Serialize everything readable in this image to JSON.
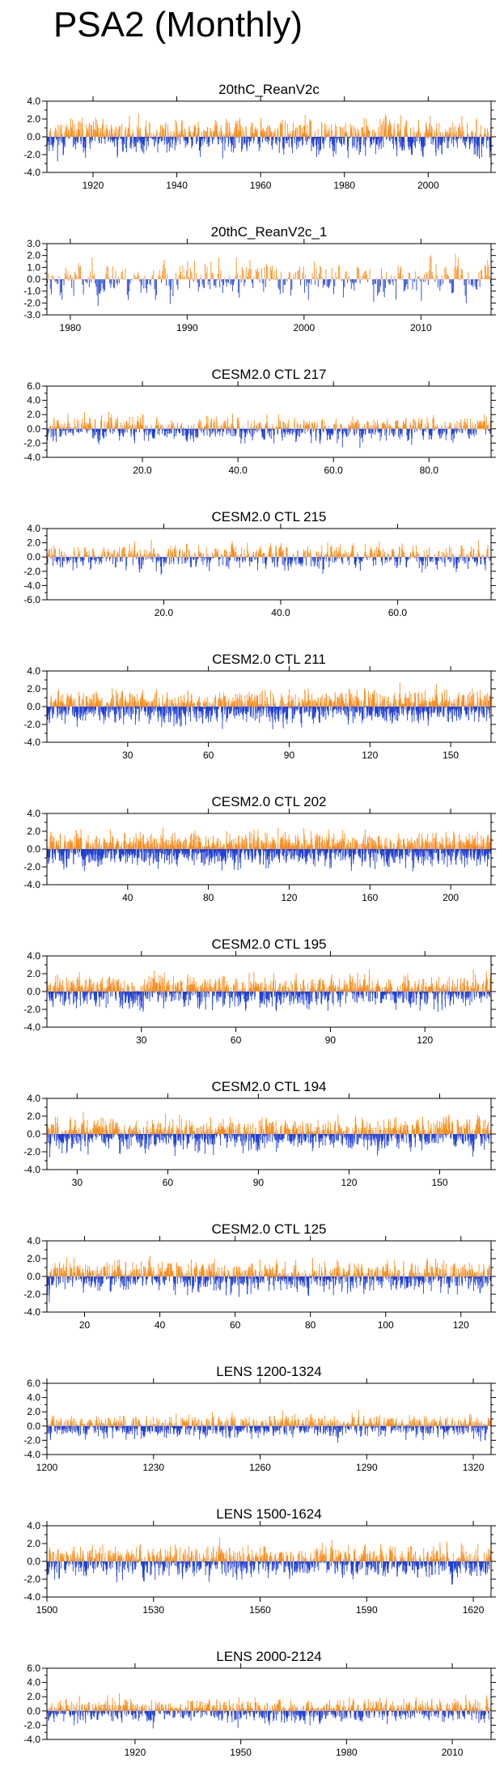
{
  "title": "PSA2 (Monthly)",
  "colors": {
    "positive": "#ff8c1a",
    "negative": "#1f3fd6",
    "frame": "#000000"
  },
  "chart_data": [
    {
      "type": "bar",
      "title": "20thC_ReanV2c",
      "xlim": [
        1909,
        2015
      ],
      "ylim": [
        -4,
        4
      ],
      "yticks": [
        -4,
        -2,
        0,
        2,
        4
      ],
      "ytick_labels": [
        "-4.0",
        "-2.0",
        "0.0",
        "2.0",
        "4.0"
      ],
      "xticks": [
        1920,
        1940,
        1960,
        1980,
        2000
      ],
      "xtick_labels": [
        "1920",
        "1940",
        "1960",
        "1980",
        "2000"
      ],
      "n_points": 1272,
      "amplitude": 1.1,
      "seed": 11
    },
    {
      "type": "bar",
      "title": "20thC_ReanV2c_1",
      "xlim": [
        1978,
        2016
      ],
      "ylim": [
        -3,
        3
      ],
      "yticks": [
        -3,
        -2,
        -1,
        0,
        1,
        2,
        3
      ],
      "ytick_labels": [
        "-3.0",
        "-2.0",
        "-1.0",
        "0.0",
        "1.0",
        "2.0",
        "3.0"
      ],
      "xticks": [
        1980,
        1990,
        2000,
        2010
      ],
      "xtick_labels": [
        "1980",
        "1990",
        "2000",
        "2010"
      ],
      "n_points": 456,
      "amplitude": 0.9,
      "seed": 23
    },
    {
      "type": "bar",
      "title": "CESM2.0 CTL 217",
      "xlim": [
        0,
        93
      ],
      "ylim": [
        -4,
        6
      ],
      "yticks": [
        -4,
        -2,
        0,
        2,
        4,
        6
      ],
      "ytick_labels": [
        "-4.0",
        "-2.0",
        "0.0",
        "2.0",
        "4.0",
        "6.0"
      ],
      "xticks": [
        20,
        40,
        60,
        80
      ],
      "xtick_labels": [
        "20.0",
        "40.0",
        "60.0",
        "80.0"
      ],
      "n_points": 1116,
      "amplitude": 1.0,
      "seed": 37
    },
    {
      "type": "bar",
      "title": "CESM2.0 CTL 215",
      "xlim": [
        0,
        76
      ],
      "ylim": [
        -6,
        4
      ],
      "yticks": [
        -6,
        -4,
        -2,
        0,
        2,
        4
      ],
      "ytick_labels": [
        "-6.0",
        "-4.0",
        "-2.0",
        "0.0",
        "2.0",
        "4.0"
      ],
      "xticks": [
        20,
        40,
        60
      ],
      "xtick_labels": [
        "20.0",
        "40.0",
        "60.0"
      ],
      "n_points": 912,
      "amplitude": 1.0,
      "seed": 41
    },
    {
      "type": "bar",
      "title": "CESM2.0 CTL 211",
      "xlim": [
        0,
        165
      ],
      "ylim": [
        -4,
        4
      ],
      "yticks": [
        -4,
        -2,
        0,
        2,
        4
      ],
      "ytick_labels": [
        "-4.0",
        "-2.0",
        "0.0",
        "2.0",
        "4.0"
      ],
      "xticks": [
        30,
        60,
        90,
        120,
        150
      ],
      "xtick_labels": [
        "30",
        "60",
        "90",
        "120",
        "150"
      ],
      "n_points": 1980,
      "amplitude": 1.0,
      "seed": 53
    },
    {
      "type": "bar",
      "title": "CESM2.0 CTL 202",
      "xlim": [
        0,
        220
      ],
      "ylim": [
        -4,
        4
      ],
      "yticks": [
        -4,
        -2,
        0,
        2,
        4
      ],
      "ytick_labels": [
        "-4.0",
        "-2.0",
        "0.0",
        "2.0",
        "4.0"
      ],
      "xticks": [
        40,
        80,
        120,
        160,
        200
      ],
      "xtick_labels": [
        "40",
        "80",
        "120",
        "160",
        "200"
      ],
      "n_points": 2640,
      "amplitude": 1.0,
      "seed": 67
    },
    {
      "type": "bar",
      "title": "CESM2.0 CTL 195",
      "xlim": [
        0,
        141
      ],
      "ylim": [
        -4,
        4
      ],
      "yticks": [
        -4,
        -2,
        0,
        2,
        4
      ],
      "ytick_labels": [
        "-4.0",
        "-2.0",
        "0.0",
        "2.0",
        "4.0"
      ],
      "xticks": [
        30,
        60,
        90,
        120
      ],
      "xtick_labels": [
        "30",
        "60",
        "90",
        "120"
      ],
      "n_points": 1692,
      "amplitude": 1.0,
      "seed": 71
    },
    {
      "type": "bar",
      "title": "CESM2.0 CTL 194",
      "xlim": [
        20,
        167
      ],
      "ylim": [
        -4,
        4
      ],
      "yticks": [
        -4,
        -2,
        0,
        2,
        4
      ],
      "ytick_labels": [
        "-4.0",
        "-2.0",
        "0.0",
        "2.0",
        "4.0"
      ],
      "xticks": [
        30,
        60,
        90,
        120,
        150
      ],
      "xtick_labels": [
        "30",
        "60",
        "90",
        "120",
        "150"
      ],
      "n_points": 1764,
      "amplitude": 1.0,
      "seed": 83
    },
    {
      "type": "bar",
      "title": "CESM2.0 CTL 125",
      "xlim": [
        10,
        128
      ],
      "ylim": [
        -4,
        4
      ],
      "yticks": [
        -4,
        -2,
        0,
        2,
        4
      ],
      "ytick_labels": [
        "-4.0",
        "-2.0",
        "0.0",
        "2.0",
        "4.0"
      ],
      "xticks": [
        20,
        40,
        60,
        80,
        100,
        120
      ],
      "xtick_labels": [
        "20",
        "40",
        "60",
        "80",
        "100",
        "120"
      ],
      "n_points": 1416,
      "amplitude": 1.0,
      "seed": 97
    },
    {
      "type": "bar",
      "title": "LENS 1200-1324",
      "xlim": [
        1200,
        1325
      ],
      "ylim": [
        -4,
        6
      ],
      "yticks": [
        -4,
        -2,
        0,
        2,
        4,
        6
      ],
      "ytick_labels": [
        "-4.0",
        "-2.0",
        "0.0",
        "2.0",
        "4.0",
        "6.0"
      ],
      "xticks": [
        1200,
        1230,
        1260,
        1290,
        1320
      ],
      "xtick_labels": [
        "1200",
        "1230",
        "1260",
        "1290",
        "1320"
      ],
      "n_points": 1500,
      "amplitude": 0.9,
      "seed": 101
    },
    {
      "type": "bar",
      "title": "LENS 1500-1624",
      "xlim": [
        1500,
        1625
      ],
      "ylim": [
        -4,
        4
      ],
      "yticks": [
        -4,
        -2,
        0,
        2,
        4
      ],
      "ytick_labels": [
        "-4.0",
        "-2.0",
        "0.0",
        "2.0",
        "4.0"
      ],
      "xticks": [
        1500,
        1530,
        1560,
        1590,
        1620
      ],
      "xtick_labels": [
        "1500",
        "1530",
        "1560",
        "1590",
        "1620"
      ],
      "n_points": 1500,
      "amplitude": 1.0,
      "seed": 113
    },
    {
      "type": "bar",
      "title": "LENS 2000-2124",
      "xlim": [
        1895,
        2021
      ],
      "ylim": [
        -4,
        6
      ],
      "yticks": [
        -4,
        -2,
        0,
        2,
        4,
        6
      ],
      "ytick_labels": [
        "-4.0",
        "-2.0",
        "0.0",
        "2.0",
        "4.0",
        "6.0"
      ],
      "xticks": [
        1920,
        1950,
        1980,
        2010
      ],
      "xtick_labels": [
        "1920",
        "1950",
        "1980",
        "2010"
      ],
      "n_points": 1512,
      "amplitude": 0.9,
      "seed": 127
    }
  ]
}
